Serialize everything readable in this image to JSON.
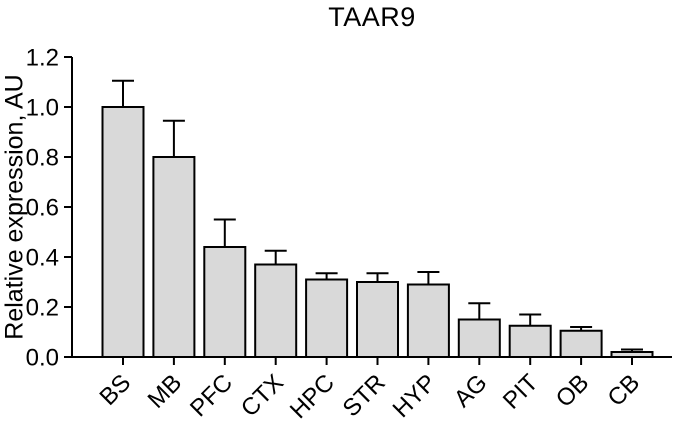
{
  "figure": {
    "background": "#ffffff"
  },
  "chart_data": {
    "type": "bar",
    "title": "TAAR9",
    "ylabel": "Relative expression, AU",
    "xlabel": "",
    "categories": [
      "BS",
      "MB",
      "PFC",
      "CTX",
      "HPC",
      "STR",
      "HYP",
      "AG",
      "PIT",
      "OB",
      "CB"
    ],
    "values": [
      1.0,
      0.8,
      0.44,
      0.37,
      0.31,
      0.3,
      0.29,
      0.15,
      0.125,
      0.105,
      0.02
    ],
    "errors_upper": [
      0.105,
      0.145,
      0.11,
      0.055,
      0.025,
      0.035,
      0.05,
      0.065,
      0.045,
      0.015,
      0.01
    ],
    "error_bars": "upper only, capped",
    "ylim": [
      0,
      1.2
    ],
    "ytick_step": 0.2,
    "ytick_labels": [
      "0.0",
      "0.2",
      "0.4",
      "0.6",
      "0.8",
      "1.0",
      "1.2"
    ],
    "x_label_rotation_deg": -45,
    "grid": false,
    "legend": "none",
    "bar_fill": "#d9d9d9",
    "bar_stroke": "#000000",
    "axis_color": "#000000"
  }
}
